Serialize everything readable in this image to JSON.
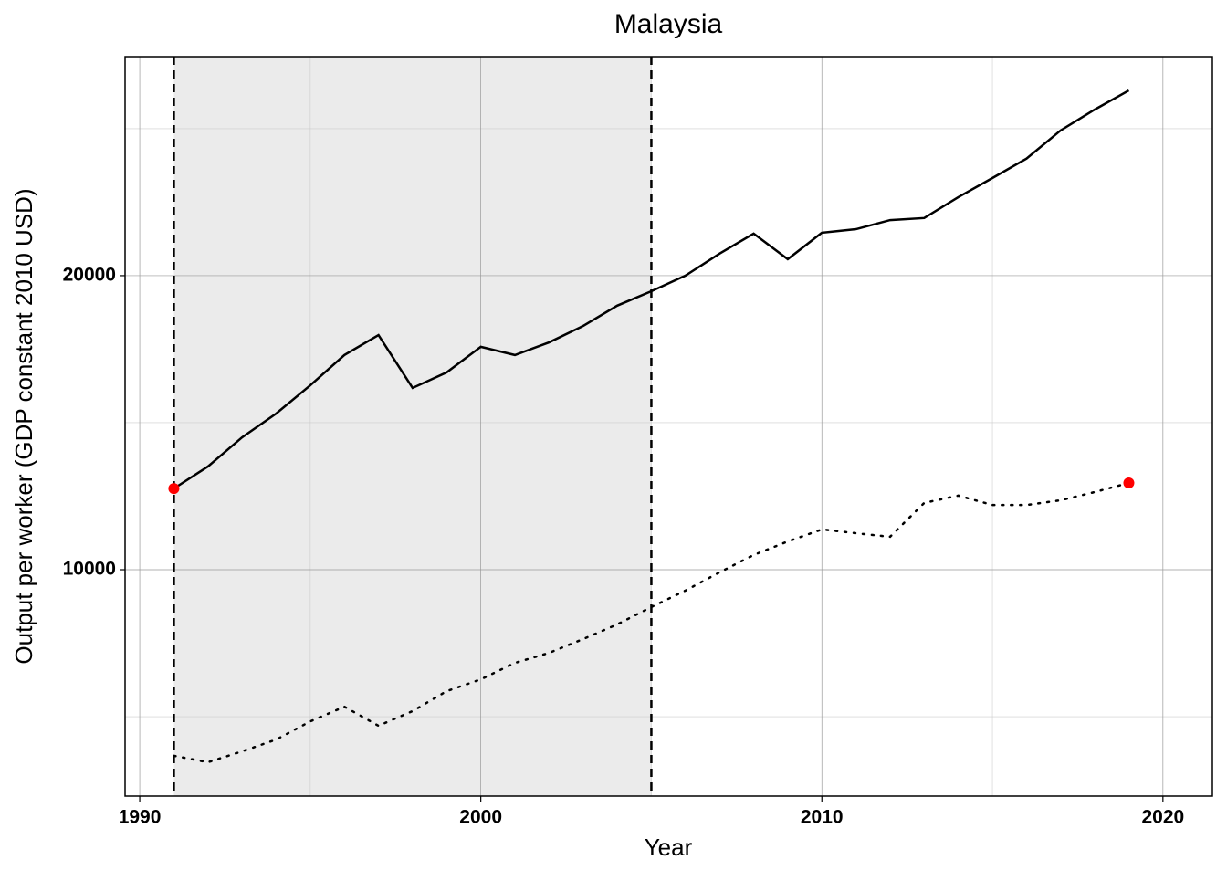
{
  "chart_data": {
    "type": "line",
    "title": "Malaysia",
    "x_label": "Year",
    "y_label": "Output per worker (GDP constant 2010 USD)",
    "x": [
      1991,
      1992,
      1993,
      1994,
      1995,
      1996,
      1997,
      1998,
      1999,
      2000,
      2001,
      2002,
      2003,
      2004,
      2005,
      2006,
      2007,
      2008,
      2009,
      2010,
      2011,
      2012,
      2013,
      2014,
      2015,
      2016,
      2017,
      2018,
      2019
    ],
    "series": [
      {
        "color": "#000000",
        "style": "solid",
        "values": [
          12760,
          13510,
          14500,
          15310,
          16270,
          17300,
          17980,
          16180,
          16710,
          17580,
          17300,
          17730,
          18290,
          18980,
          19470,
          20000,
          20750,
          21430,
          20560,
          21460,
          21580,
          21890,
          21960,
          22670,
          23320,
          23980,
          24940,
          25650,
          26300
        ]
      },
      {
        "color": "#000000",
        "style": "dotted",
        "values": [
          3670,
          3450,
          3820,
          4220,
          4840,
          5340,
          4690,
          5190,
          5870,
          6270,
          6830,
          7170,
          7640,
          8140,
          8730,
          9290,
          9910,
          10500,
          10960,
          11370,
          11240,
          11120,
          12270,
          12520,
          12200,
          12200,
          12360,
          12640,
          12950
        ]
      }
    ],
    "points": {
      "color": "#ff0000",
      "x": [
        1991,
        2019
      ],
      "values": [
        12760,
        12950
      ]
    },
    "shaded_region": [
      1991,
      2005
    ],
    "shade_color": "#ebebeb",
    "xlim": [
      1989.57,
      2021.45
    ],
    "xticks": [
      1990,
      2000,
      2010,
      2020
    ],
    "ylim": [
      2300,
      27450
    ],
    "yticks": [
      10000,
      20000
    ],
    "grid": true
  }
}
